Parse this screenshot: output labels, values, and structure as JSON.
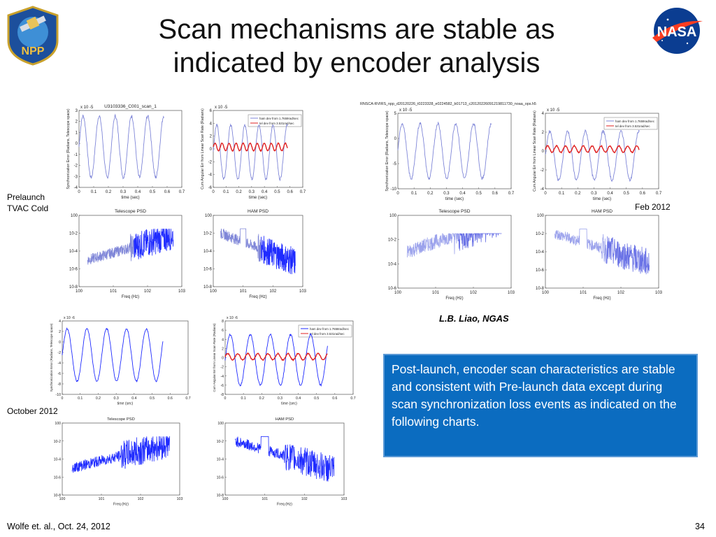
{
  "slide": {
    "title_line1": "Scan mechanisms are stable as",
    "title_line2": "indicated by encoder analysis",
    "labels": {
      "prelaunch_line1": "Prelaunch",
      "prelaunch_line2": "TVAC Cold",
      "october": "October 2012",
      "feb": "Feb 2012"
    },
    "author_credit": "L.B. Liao, NGAS",
    "callout_text": "Post-launch, encoder scan characteristics are stable and consistent with Pre-launch data except during scan synchronization loss events as indicated on the following charts.",
    "footer_left": "Wolfe et. al., Oct. 24, 2012",
    "page_number": "34",
    "logos": {
      "npp_text": "NPP",
      "nasa_text": "NASA"
    }
  },
  "colors": {
    "blue": "#1f2bff",
    "red": "#e02020",
    "faded_blue": "#7f86d8",
    "callout_bg": "#0b6cc0"
  },
  "chart_data": [
    {
      "id": "pre_tel",
      "type": "line",
      "title": "U3103336_C001_scan_1",
      "xlabel": "time (sec)",
      "ylabel": "Synchronization Error (Radians, Telescope space)",
      "xlim": [
        0,
        0.7
      ],
      "ylim": [
        -4,
        3
      ],
      "exponent": "x 10^-5",
      "xticks": [
        "0",
        "0.1",
        "0.2",
        "0.3",
        "0.4",
        "0.5",
        "0.6",
        "0.7"
      ],
      "yticks": [
        "-4",
        "-3",
        "-2",
        "-1",
        "0",
        "1",
        "2",
        "3"
      ],
      "series": [
        {
          "name": "telescope sync error",
          "kind": "sine",
          "amp": 2.8,
          "offset": -0.3,
          "period": 0.11,
          "x_end": 0.58,
          "noise": 0.15,
          "color": "#7f86d8"
        }
      ]
    },
    {
      "id": "pre_ham",
      "type": "line",
      "title": "",
      "xlabel": "time (sec)",
      "ylabel": "Cum Angular Err from Linear Scan Rate (Radians)",
      "xlim": [
        0,
        0.7
      ],
      "ylim": [
        -6,
        6
      ],
      "exponent": "x 10^-5",
      "xticks": [
        "0",
        "0.1",
        "0.2",
        "0.3",
        "0.4",
        "0.5",
        "0.6",
        "0.7"
      ],
      "yticks": [
        "-6",
        "-4",
        "-2",
        "0",
        "2",
        "4",
        "6"
      ],
      "legend": [
        "ham dev from 1.7659rad/sec",
        "tel dev from 3.531rad/sec"
      ],
      "series": [
        {
          "name": "tel dev",
          "kind": "sine",
          "amp": 4.2,
          "offset": -0.5,
          "period": 0.11,
          "x_end": 0.58,
          "noise": 0.2,
          "color": "#7f86d8"
        },
        {
          "name": "ham dev",
          "kind": "sine",
          "amp": 0.6,
          "offset": 0.3,
          "period": 0.055,
          "x_end": 0.58,
          "noise": 0.05,
          "color": "#e02020"
        }
      ]
    },
    {
      "id": "pre_tel_psd",
      "type": "line",
      "title": "Telescope PSD",
      "xlabel": "Freq (Hz)",
      "ylabel": "",
      "xlim": [
        0,
        3
      ],
      "ylim": [
        -8,
        0
      ],
      "log": true,
      "xticks": [
        "10^0",
        "10^1",
        "10^2",
        "10^3"
      ],
      "yticks": [
        "10^-8",
        "10^-6",
        "10^-4",
        "10^-2",
        "10^0"
      ],
      "series": [
        {
          "name": "psd",
          "kind": "psd",
          "color": "#7f86d8",
          "dense_color": "#1f2bff"
        }
      ]
    },
    {
      "id": "pre_ham_psd",
      "type": "line",
      "title": "HAM PSD",
      "xlabel": "Freq (Hz)",
      "ylabel": "",
      "xlim": [
        0,
        3
      ],
      "ylim": [
        -8,
        0
      ],
      "log": true,
      "xticks": [
        "10^0",
        "10^1",
        "10^2",
        "10^3"
      ],
      "yticks": [
        "10^-8",
        "10^-6",
        "10^-4",
        "10^-2",
        "10^0"
      ],
      "series": [
        {
          "name": "psd",
          "kind": "psd_ham",
          "color": "#7f86d8",
          "dense_color": "#1f2bff"
        }
      ]
    },
    {
      "id": "feb_tel",
      "type": "line",
      "title": "",
      "header": "RNSCA-RVIRS_npp_d20120226_t0223328_e0224582_b01713_c20120226091219811730_noaa_ops.h5",
      "xlabel": "time (sec)",
      "ylabel": "Synchronization Error (Radians, Telescope space)",
      "xlim": [
        0,
        0.7
      ],
      "ylim": [
        -10,
        5
      ],
      "exponent": "x 10^-5",
      "xticks": [
        "0",
        "0.1",
        "0.2",
        "0.3",
        "0.4",
        "0.5",
        "0.6",
        "0.7"
      ],
      "yticks": [
        "-10",
        "-5",
        "0",
        "5"
      ],
      "series": [
        {
          "name": "tel",
          "kind": "sine",
          "amp": 5.5,
          "offset": -2.5,
          "period": 0.11,
          "x_end": 0.58,
          "noise": 0.3,
          "color": "#7f86d8"
        }
      ]
    },
    {
      "id": "feb_ham",
      "type": "line",
      "title": "",
      "xlabel": "time (sec)",
      "ylabel": "Cum Angular Err from Linear Scan Rate (Radians)",
      "xlim": [
        0,
        0.7
      ],
      "ylim": [
        -4,
        4
      ],
      "exponent": "x 10^-5",
      "xticks": [
        "0",
        "0.1",
        "0.2",
        "0.3",
        "0.4",
        "0.5",
        "0.6",
        "0.7"
      ],
      "yticks": [
        "-4",
        "-2",
        "0",
        "2",
        "4"
      ],
      "legend": [
        "ham dev from 1.7659rad/sec",
        "tel dev from 3.531rad/sec"
      ],
      "series": [
        {
          "name": "tel dev",
          "kind": "sine",
          "amp": 2.6,
          "offset": -0.5,
          "period": 0.11,
          "x_end": 0.58,
          "noise": 0.15,
          "color": "#7f86d8"
        },
        {
          "name": "ham dev",
          "kind": "sine",
          "amp": 0.35,
          "offset": 0.2,
          "period": 0.055,
          "x_end": 0.58,
          "noise": 0.05,
          "color": "#e02020"
        }
      ]
    },
    {
      "id": "feb_tel_psd",
      "type": "line",
      "title": "Telescope PSD",
      "xlabel": "Freq (Hz)",
      "ylabel": "",
      "xlim": [
        0,
        3
      ],
      "ylim": [
        -6,
        0
      ],
      "log": true,
      "xticks": [
        "10^0",
        "10^1",
        "10^2",
        "10^3"
      ],
      "yticks": [
        "10^-6",
        "10^-4",
        "10^-2",
        "10^0"
      ],
      "series": [
        {
          "name": "psd",
          "kind": "psd",
          "color": "#9ba2ec",
          "dense_color": "#6a72e6"
        }
      ]
    },
    {
      "id": "feb_ham_psd",
      "type": "line",
      "title": "HAM PSD",
      "xlabel": "Freq (Hz)",
      "ylabel": "",
      "xlim": [
        0,
        3
      ],
      "ylim": [
        -8,
        0
      ],
      "log": true,
      "xticks": [
        "10^0",
        "10^1",
        "10^2",
        "10^3"
      ],
      "yticks": [
        "10^-8",
        "10^-6",
        "10^-4",
        "10^-2",
        "10^0"
      ],
      "series": [
        {
          "name": "psd",
          "kind": "psd_ham",
          "color": "#9ba2ec",
          "dense_color": "#6a72e6"
        }
      ]
    },
    {
      "id": "oct_tel",
      "type": "line",
      "title": "",
      "xlabel": "time (sec)",
      "ylabel": "Synchronization Error (Radians, Telescope space)",
      "xlim": [
        0,
        0.7
      ],
      "ylim": [
        -10,
        4
      ],
      "exponent": "x 10^-6",
      "xticks": [
        "0",
        "0.1",
        "0.2",
        "0.3",
        "0.4",
        "0.5",
        "0.6",
        "0.7"
      ],
      "yticks": [
        "-10",
        "-8",
        "-6",
        "-4",
        "-2",
        "0",
        "2",
        "4"
      ],
      "series": [
        {
          "name": "tel",
          "kind": "sine",
          "amp": 5.0,
          "offset": -2.5,
          "period": 0.11,
          "x_end": 0.56,
          "noise": 0.15,
          "color": "#1f2bff"
        }
      ]
    },
    {
      "id": "oct_ham",
      "type": "line",
      "title": "",
      "xlabel": "time (sec)",
      "ylabel": "Cum Angular Err from Linear Scan Rate (Radians)",
      "xlim": [
        0,
        0.7
      ],
      "ylim": [
        -8,
        8
      ],
      "exponent": "x 10^-6",
      "xticks": [
        "0",
        "0.1",
        "0.2",
        "0.3",
        "0.4",
        "0.5",
        "0.6",
        "0.7"
      ],
      "yticks": [
        "-8",
        "-6",
        "-4",
        "-2",
        "0",
        "2",
        "4",
        "6",
        "8"
      ],
      "legend": [
        "ham dev from 1.7658rad/sec",
        "tel dev from 3.531rad/sec"
      ],
      "series": [
        {
          "name": "tel dev",
          "kind": "sine",
          "amp": 5.5,
          "offset": -0.5,
          "period": 0.11,
          "x_end": 0.56,
          "noise": 0.2,
          "color": "#1f2bff"
        },
        {
          "name": "ham dev",
          "kind": "sine",
          "amp": 0.7,
          "offset": 0.2,
          "period": 0.055,
          "x_end": 0.56,
          "noise": 0.1,
          "color": "#e02020"
        }
      ]
    },
    {
      "id": "oct_tel_psd",
      "type": "line",
      "title": "Telescope PSD",
      "xlabel": "Freq (Hz)",
      "ylabel": "",
      "xlim": [
        0,
        3
      ],
      "ylim": [
        -8,
        0
      ],
      "log": true,
      "xticks": [
        "10^0",
        "10^1",
        "10^2",
        "10^3"
      ],
      "yticks": [
        "10^-8",
        "10^-6",
        "10^-4",
        "10^-2",
        "10^0"
      ],
      "series": [
        {
          "name": "psd",
          "kind": "psd",
          "color": "#1f2bff",
          "dense_color": "#1f2bff"
        }
      ]
    },
    {
      "id": "oct_ham_psd",
      "type": "line",
      "title": "HAM PSD",
      "xlabel": "Freq (Hz)",
      "ylabel": "",
      "xlim": [
        0,
        3
      ],
      "ylim": [
        -8,
        0
      ],
      "log": true,
      "xticks": [
        "10^0",
        "10^1",
        "10^2",
        "10^3"
      ],
      "yticks": [
        "10^-8",
        "10^-6",
        "10^-4",
        "10^-2",
        "10^0"
      ],
      "series": [
        {
          "name": "psd",
          "kind": "psd_ham",
          "color": "#1f2bff",
          "dense_color": "#1f2bff"
        }
      ]
    }
  ]
}
